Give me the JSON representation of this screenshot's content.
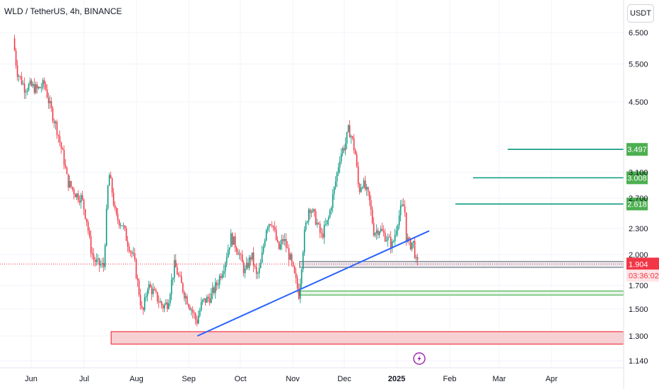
{
  "header": {
    "symbol_title": "WLD / TetherUS, 4h, BINANCE",
    "currency": "USDT"
  },
  "colors": {
    "up": "#089981",
    "down": "#f23645",
    "trendline": "#2962ff",
    "fib_line": "#089981",
    "fib_badge": "#4caf50",
    "support_zone_fill": "#e5f4e7",
    "resistance_zone_fill": "#e8e8ee",
    "base_zone_fill": "#f7d0d3",
    "base_zone_stroke": "#f23645",
    "grid": "#f0f3fa",
    "lightning": "#9c27b0"
  },
  "icons": {
    "event_marker": "lightning-icon"
  },
  "chart_data": {
    "type": "candlestick",
    "symbol": "WLD / TetherUS",
    "interval": "4h",
    "exchange": "BINANCE",
    "y_scale": "log",
    "y_ticks": [
      "6.500",
      "5.500",
      "4.500",
      "3.100",
      "2.700",
      "2.300",
      "2.000",
      "1.700",
      "1.500",
      "1.300",
      "1.140"
    ],
    "x_ticks": [
      "Jun",
      "Jul",
      "Aug",
      "Sep",
      "Oct",
      "Nov",
      "Dec",
      "2025",
      "Feb",
      "Mar",
      "Apr"
    ],
    "price_path": [
      [
        "May 23",
        6.3
      ],
      [
        "May 25",
        5.3
      ],
      [
        "May 29",
        4.85
      ],
      [
        "Jun 1",
        4.9
      ],
      [
        "Jun 5",
        4.8
      ],
      [
        "Jun 9",
        4.95
      ],
      [
        "Jun 12",
        4.4
      ],
      [
        "Jun 16",
        3.9
      ],
      [
        "Jun 20",
        3.3
      ],
      [
        "Jun 22",
        2.95
      ],
      [
        "Jun 27",
        2.75
      ],
      [
        "Jun 30",
        2.7
      ],
      [
        "Jul 3",
        2.4
      ],
      [
        "Jul 5",
        2.1
      ],
      [
        "Jul 7",
        1.95
      ],
      [
        "Jul 10",
        1.9
      ],
      [
        "Jul 13",
        1.88
      ],
      [
        "Jul 16",
        3.1
      ],
      [
        "Jul 18",
        2.8
      ],
      [
        "Jul 20",
        2.45
      ],
      [
        "Jul 24",
        2.35
      ],
      [
        "Jul 27",
        2.15
      ],
      [
        "Jul 31",
        1.95
      ],
      [
        "Aug 5",
        1.45
      ],
      [
        "Aug 8",
        1.7
      ],
      [
        "Aug 11",
        1.65
      ],
      [
        "Aug 14",
        1.58
      ],
      [
        "Aug 17",
        1.52
      ],
      [
        "Aug 20",
        1.55
      ],
      [
        "Aug 24",
        1.9
      ],
      [
        "Aug 27",
        1.75
      ],
      [
        "Aug 30",
        1.62
      ],
      [
        "Sep 3",
        1.5
      ],
      [
        "Sep 6",
        1.4
      ],
      [
        "Sep 9",
        1.55
      ],
      [
        "Sep 14",
        1.6
      ],
      [
        "Sep 18",
        1.72
      ],
      [
        "Sep 22",
        1.9
      ],
      [
        "Sep 26",
        2.2
      ],
      [
        "Sep 30",
        2.05
      ],
      [
        "Oct 4",
        1.82
      ],
      [
        "Oct 8",
        2.0
      ],
      [
        "Oct 11",
        1.78
      ],
      [
        "Oct 13",
        1.85
      ],
      [
        "Oct 17",
        2.35
      ],
      [
        "Oct 20",
        2.4
      ],
      [
        "Oct 24",
        2.05
      ],
      [
        "Oct 27",
        2.18
      ],
      [
        "Oct 31",
        1.95
      ],
      [
        "Nov 3",
        1.75
      ],
      [
        "Nov 5",
        1.62
      ],
      [
        "Nov 8",
        2.2
      ],
      [
        "Nov 11",
        2.6
      ],
      [
        "Nov 15",
        2.4
      ],
      [
        "Nov 18",
        2.2
      ],
      [
        "Nov 22",
        2.4
      ],
      [
        "Nov 26",
        2.9
      ],
      [
        "Nov 29",
        3.4
      ],
      [
        "Dec 2",
        3.6
      ],
      [
        "Dec 4",
        3.9
      ],
      [
        "Dec 6",
        3.7
      ],
      [
        "Dec 8",
        3.4
      ],
      [
        "Dec 10",
        2.8
      ],
      [
        "Dec 12",
        2.95
      ],
      [
        "Dec 16",
        2.7
      ],
      [
        "Dec 19",
        2.25
      ],
      [
        "Dec 22",
        2.3
      ],
      [
        "Dec 26",
        2.2
      ],
      [
        "Dec 30",
        2.1
      ],
      [
        "Jan 2",
        2.4
      ],
      [
        "Jan 4",
        2.55
      ],
      [
        "Jan 6",
        2.6
      ],
      [
        "Jan 7",
        2.2
      ],
      [
        "Jan 9",
        2.1
      ],
      [
        "Jan 11",
        2.15
      ],
      [
        "Jan 13",
        1.9
      ]
    ],
    "last_price": "1.904",
    "countdown": "03:36:02",
    "fib_levels": [
      "3.497",
      "3.008",
      "2.618"
    ],
    "trendline": {
      "from": [
        "Sep 6",
        1.3
      ],
      "to": [
        "Jan 20",
        2.27
      ]
    },
    "zones": [
      {
        "name": "resistance",
        "x_from": "Nov 5",
        "y_range": [
          1.87,
          1.93
        ]
      },
      {
        "name": "support",
        "x_from": "Nov 5",
        "y_range": [
          1.615,
          1.65
        ]
      },
      {
        "name": "base",
        "x_from": "Jul 17",
        "y_range": [
          1.245,
          1.33
        ]
      }
    ],
    "grid": true,
    "legend": "none"
  }
}
